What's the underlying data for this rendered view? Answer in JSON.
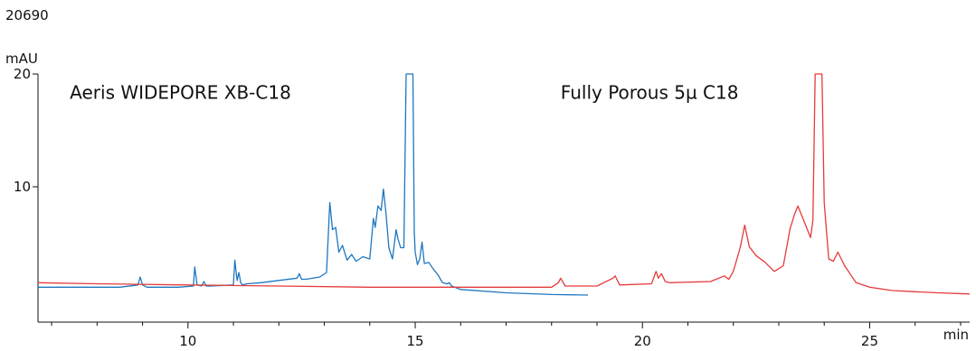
{
  "chart_data": {
    "type": "line",
    "title": "20690",
    "ylabel": "mAU",
    "xlabel": "min",
    "xlim": [
      6.7,
      27.2
    ],
    "ylim": [
      0,
      20
    ],
    "yticks": [
      10,
      20
    ],
    "xticks": [
      10,
      15,
      20,
      25
    ],
    "grid": false,
    "annotations": [
      {
        "text": "Aeris WIDEPORE XB-C18",
        "x": 7.4,
        "y": 17.8
      },
      {
        "text": "Fully Porous 5µ C18",
        "x": 18.2,
        "y": 17.8
      }
    ],
    "series": [
      {
        "color": "#1f77c0",
        "x": [
          6.7,
          8.5,
          8.9,
          8.95,
          9.0,
          9.1,
          9.8,
          10.12,
          10.15,
          10.2,
          10.3,
          10.35,
          10.4,
          10.5,
          11.0,
          11.03,
          11.08,
          11.12,
          11.16,
          11.2,
          11.3,
          11.6,
          12.0,
          12.4,
          12.45,
          12.5,
          12.6,
          12.9,
          13.05,
          13.12,
          13.18,
          13.25,
          13.32,
          13.4,
          13.5,
          13.6,
          13.7,
          13.85,
          14.0,
          14.08,
          14.12,
          14.18,
          14.25,
          14.3,
          14.36,
          14.42,
          14.5,
          14.58,
          14.62,
          14.68,
          14.75,
          14.8,
          14.82,
          14.95,
          14.98,
          15.0,
          15.05,
          15.1,
          15.15,
          15.2,
          15.3,
          15.4,
          15.5,
          15.6,
          15.7,
          15.75,
          15.8,
          16.0,
          17.0,
          18.0,
          18.8
        ],
        "y": [
          1.1,
          1.1,
          1.3,
          2.0,
          1.3,
          1.1,
          1.1,
          1.2,
          2.9,
          1.3,
          1.2,
          1.6,
          1.2,
          1.2,
          1.3,
          3.5,
          1.7,
          2.4,
          1.5,
          1.3,
          1.4,
          1.5,
          1.7,
          1.9,
          2.3,
          1.8,
          1.8,
          2.0,
          2.4,
          8.6,
          6.2,
          6.4,
          4.2,
          4.8,
          3.5,
          4.0,
          3.4,
          3.8,
          3.6,
          7.2,
          6.4,
          8.3,
          7.9,
          9.8,
          7.5,
          4.6,
          3.6,
          6.2,
          5.4,
          4.6,
          4.6,
          20.0,
          20.0,
          20.0,
          6.0,
          4.2,
          3.1,
          3.6,
          5.1,
          3.2,
          3.3,
          2.7,
          2.2,
          1.5,
          1.4,
          1.5,
          1.2,
          0.9,
          0.6,
          0.45,
          0.4
        ]
      },
      {
        "color": "#e53b3b",
        "x": [
          6.7,
          8.0,
          10.0,
          12.0,
          14.0,
          15.0,
          16.0,
          18.0,
          18.15,
          18.2,
          18.3,
          19.0,
          19.35,
          19.4,
          19.5,
          20.2,
          20.3,
          20.35,
          20.42,
          20.5,
          20.6,
          21.5,
          21.8,
          21.9,
          22.0,
          22.15,
          22.25,
          22.35,
          22.5,
          22.7,
          22.9,
          23.1,
          23.25,
          23.35,
          23.42,
          23.55,
          23.7,
          23.75,
          23.8,
          23.95,
          24.0,
          24.1,
          24.2,
          24.3,
          24.45,
          24.7,
          25.0,
          25.5,
          26.0,
          26.5,
          27.2
        ],
        "y": [
          1.5,
          1.4,
          1.3,
          1.2,
          1.1,
          1.1,
          1.1,
          1.1,
          1.5,
          1.9,
          1.2,
          1.2,
          1.9,
          2.1,
          1.3,
          1.4,
          2.5,
          1.9,
          2.3,
          1.6,
          1.5,
          1.6,
          2.1,
          1.8,
          2.5,
          4.6,
          6.6,
          4.7,
          3.9,
          3.3,
          2.5,
          3.0,
          6.3,
          7.6,
          8.3,
          7.0,
          5.5,
          7.0,
          20.0,
          20.0,
          8.6,
          3.6,
          3.4,
          4.2,
          3.0,
          1.5,
          1.1,
          0.8,
          0.7,
          0.6,
          0.5
        ]
      }
    ]
  }
}
